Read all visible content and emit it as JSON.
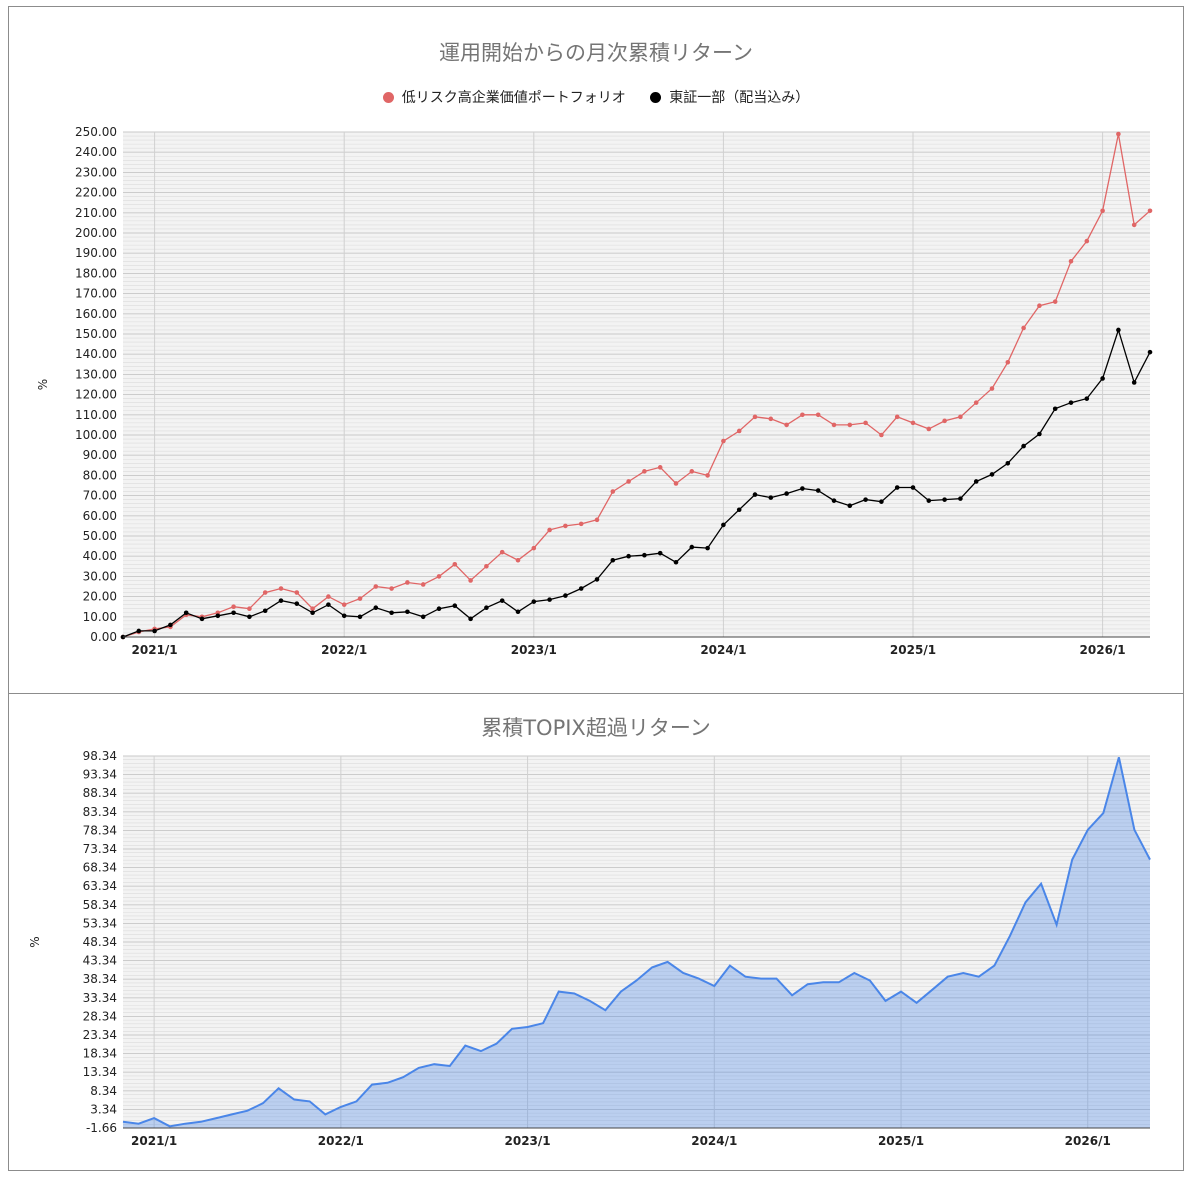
{
  "chart_data": [
    {
      "type": "line",
      "title": "運用開始からの月次累積リターン",
      "ylabel": "%",
      "ylim": [
        0,
        250
      ],
      "yticks": [
        "0.00",
        "10.00",
        "20.00",
        "30.00",
        "40.00",
        "50.00",
        "60.00",
        "70.00",
        "80.00",
        "90.00",
        "100.00",
        "110.00",
        "120.00",
        "130.00",
        "140.00",
        "150.00",
        "160.00",
        "170.00",
        "180.00",
        "190.00",
        "200.00",
        "210.00",
        "220.00",
        "230.00",
        "240.00",
        "250.00"
      ],
      "xticks": [
        "2021/1",
        "2022/1",
        "2023/1",
        "2024/1",
        "2025/1",
        "2026/1"
      ],
      "x_start": "2020/11",
      "legend_position": "top",
      "grid": true,
      "series": [
        {
          "name": "低リスク高企業価値ポートフォリオ",
          "color": "#e06666",
          "values": [
            0,
            2.5,
            4,
            5,
            11,
            10,
            12,
            15,
            14,
            22,
            24,
            22,
            14,
            20,
            16,
            19,
            25,
            24,
            27,
            26,
            30,
            36,
            28,
            35,
            42,
            38,
            44,
            53,
            55,
            56,
            58,
            72,
            77,
            82,
            84,
            76,
            82,
            80,
            97,
            102,
            109,
            108,
            105,
            110,
            110,
            105,
            105,
            106,
            100,
            109,
            106,
            103,
            107,
            109,
            116,
            123,
            136,
            153,
            164,
            166,
            186,
            196,
            211,
            249,
            204,
            211
          ]
        },
        {
          "name": "東証一部（配当込み）",
          "color": "#000000",
          "values": [
            0,
            3,
            3,
            6,
            12,
            9,
            10.5,
            12,
            10,
            13,
            18,
            16.5,
            12,
            16,
            10.5,
            10,
            14.5,
            12,
            12.5,
            10,
            14,
            15.5,
            9,
            14.5,
            18,
            12.5,
            17.5,
            18.5,
            20.5,
            24,
            28.5,
            38,
            40,
            40.5,
            41.5,
            37,
            44.5,
            44,
            55.5,
            63,
            70.5,
            69,
            71,
            73.5,
            72.5,
            67.5,
            65,
            68,
            67,
            74,
            74,
            67.5,
            68,
            68.5,
            77,
            80.5,
            86,
            94.5,
            100.5,
            113,
            116,
            118,
            128,
            152,
            126,
            141
          ]
        }
      ]
    },
    {
      "type": "area",
      "title": "累積TOPIX超過リターン",
      "ylabel": "%",
      "ylim": [
        -1.66,
        98.34
      ],
      "yticks": [
        "-1.66",
        "3.34",
        "8.34",
        "13.34",
        "18.34",
        "23.34",
        "28.34",
        "33.34",
        "38.34",
        "43.34",
        "48.34",
        "53.34",
        "58.34",
        "63.34",
        "68.34",
        "73.34",
        "78.34",
        "83.34",
        "88.34",
        "93.34",
        "98.34"
      ],
      "xticks": [
        "2021/1",
        "2022/1",
        "2023/1",
        "2024/1",
        "2025/1",
        "2026/1"
      ],
      "x_start": "2020/11",
      "grid": true,
      "series": [
        {
          "name": "",
          "color": "#4a86e8",
          "values": [
            0,
            -0.5,
            1,
            -1.2,
            -0.5,
            0,
            1,
            2,
            3,
            5,
            9,
            6,
            5.5,
            2,
            4,
            5.5,
            10,
            10.5,
            12,
            14.5,
            15.5,
            15,
            20.5,
            19,
            21,
            25,
            25.5,
            26.5,
            35,
            34.5,
            32.5,
            30,
            35,
            38,
            41.5,
            43,
            40,
            38.5,
            36.5,
            42,
            39,
            38.5,
            38.5,
            34,
            37,
            37.5,
            37.5,
            40,
            38,
            32.5,
            35,
            32,
            35.5,
            39,
            40,
            39,
            42,
            50,
            59,
            64,
            53,
            70.5,
            78.5,
            83,
            98,
            78.5,
            70.5
          ]
        }
      ]
    }
  ]
}
